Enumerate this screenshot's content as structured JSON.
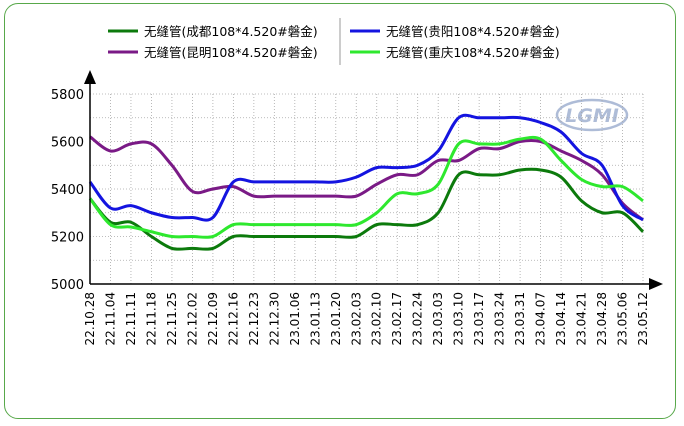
{
  "chart_data": {
    "type": "line",
    "title": "",
    "xlabel": "",
    "ylabel": "",
    "ylim": [
      5000,
      5800
    ],
    "y_ticks": [
      5000,
      5200,
      5400,
      5600,
      5800
    ],
    "grid": true,
    "legend_position": "top",
    "watermark": "LGMI",
    "x": [
      "22.10.28",
      "22.11.04",
      "22.11.11",
      "22.11.18",
      "22.11.25",
      "22.12.02",
      "22.12.09",
      "22.12.16",
      "22.12.23",
      "22.12.30",
      "23.01.06",
      "23.01.13",
      "23.01.20",
      "23.02.03",
      "23.02.10",
      "23.02.17",
      "23.02.24",
      "23.03.03",
      "23.03.10",
      "23.03.17",
      "23.03.24",
      "23.03.31",
      "23.04.07",
      "23.04.14",
      "23.04.21",
      "23.04.28",
      "23.05.06",
      "23.05.12"
    ],
    "series": [
      {
        "name": "无缝管(成都108*4.520#磐金)",
        "color": "#0c7a0c",
        "values": [
          5360,
          5260,
          5260,
          5200,
          5150,
          5150,
          5150,
          5200,
          5200,
          5200,
          5200,
          5200,
          5200,
          5200,
          5250,
          5250,
          5250,
          5300,
          5460,
          5460,
          5460,
          5480,
          5480,
          5450,
          5350,
          5300,
          5300,
          5220
        ]
      },
      {
        "name": "无缝管(昆明108*4.520#磐金)",
        "color": "#7a1a86",
        "values": [
          5620,
          5560,
          5590,
          5590,
          5500,
          5390,
          5400,
          5410,
          5370,
          5370,
          5370,
          5370,
          5370,
          5370,
          5420,
          5460,
          5460,
          5520,
          5520,
          5570,
          5570,
          5600,
          5600,
          5560,
          5520,
          5460,
          5340,
          5270
        ]
      },
      {
        "name": "无缝管(贵阳108*4.520#磐金)",
        "color": "#1414e0",
        "values": [
          5430,
          5320,
          5330,
          5300,
          5280,
          5280,
          5280,
          5430,
          5430,
          5430,
          5430,
          5430,
          5430,
          5450,
          5490,
          5490,
          5500,
          5560,
          5700,
          5700,
          5700,
          5700,
          5680,
          5640,
          5550,
          5500,
          5330,
          5270
        ]
      },
      {
        "name": "无缝管(重庆108*4.520#磐金)",
        "color": "#2ee82e",
        "values": [
          5360,
          5250,
          5240,
          5220,
          5200,
          5200,
          5200,
          5250,
          5250,
          5250,
          5250,
          5250,
          5250,
          5250,
          5300,
          5380,
          5380,
          5420,
          5590,
          5590,
          5590,
          5610,
          5610,
          5520,
          5440,
          5410,
          5410,
          5350
        ]
      }
    ]
  }
}
